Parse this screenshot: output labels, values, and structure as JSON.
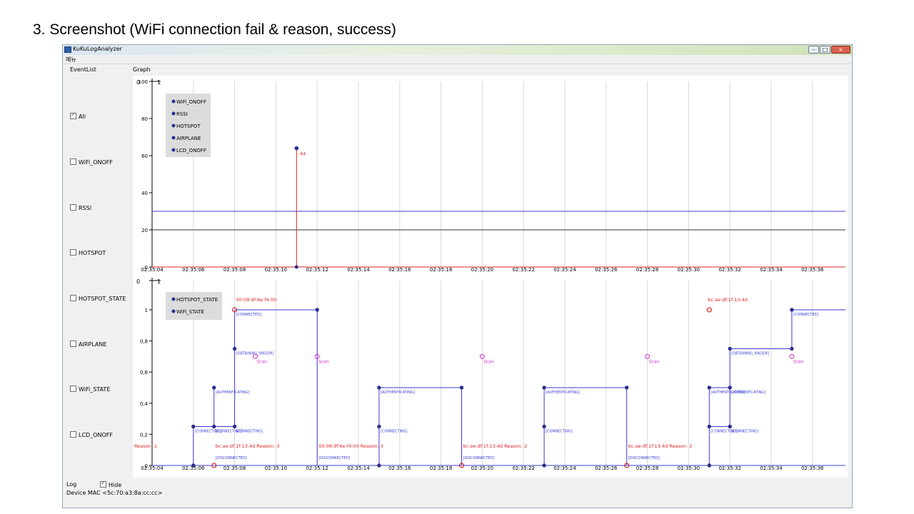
{
  "slide_title": "3. Screenshot (WiFi connection fail & reason, success)",
  "window": {
    "title": "KuKuLogAnalyzer",
    "menu_label": "메뉴",
    "min_label": "–",
    "max_label": "□",
    "close_label": "×"
  },
  "tabs": {
    "eventlist": "EventList",
    "graph": "Graph"
  },
  "sidebar": {
    "items": [
      {
        "label": "All",
        "checked": true
      },
      {
        "label": "WiFi_ONOFF",
        "checked": false
      },
      {
        "label": "RSSI",
        "checked": false
      },
      {
        "label": "HOTSPOT",
        "checked": false
      },
      {
        "label": "HOTSPOT_STATE",
        "checked": false
      },
      {
        "label": "AIRPLANE",
        "checked": false
      },
      {
        "label": "WiFi_STATE",
        "checked": false
      },
      {
        "label": "LCD_ONOFF",
        "checked": false
      }
    ]
  },
  "footer": {
    "log_label": "Log",
    "hide_label": "Hide",
    "hide_checked": true,
    "device_mac": "Device MAC <5c:70:a3:8a:cc:cc>"
  },
  "colors": {
    "blue": "#2e2e8f",
    "line_blue": "#3b3bd6",
    "red": "#e02020",
    "magenta": "#d030d0",
    "grid": "#d8d8d8"
  },
  "top_chart": {
    "x_ticks": [
      "02:35:04",
      "02:35:06",
      "02:35:08",
      "02:35:10",
      "02:35:12",
      "02:35:14",
      "02:35:16",
      "02:35:18",
      "02:35:20",
      "02:35:22",
      "02:35:24",
      "02:35:26",
      "02:35:28",
      "02:35:30",
      "02:35:32",
      "02:35:34",
      "02:35:36"
    ],
    "y_ticks": [
      "0",
      "20",
      "40",
      "60",
      "80",
      "100"
    ],
    "axis_zero": "0",
    "axis_one": "1",
    "legend": [
      "WiFi_ONOFF",
      "RSSI",
      "HOTSPOT",
      "AIRPLANE",
      "LCD_ONOFF"
    ],
    "rssi_label": "-64"
  },
  "bottom_chart": {
    "x_ticks": [
      "02:35:04",
      "02:35:06",
      "02:35:08",
      "02:35:10",
      "02:35:12",
      "02:35:14",
      "02:35:16",
      "02:35:18",
      "02:35:20",
      "02:35:22",
      "02:35:24",
      "02:35:26",
      "02:35:28",
      "02:35:30",
      "02:35:32",
      "02:35:34",
      "02:35:36"
    ],
    "y_ticks": [
      "0",
      "0,2",
      "0,4",
      "0,6",
      "0,8",
      "1"
    ],
    "axis_zero": "0",
    "axis_one": "1",
    "legend": [
      "HOTSPOT_STATE",
      "WiFi_STATE"
    ],
    "state_labels": {
      "connected": "[CONNECTED]",
      "obtaining": "[OBTAINING_IPADDR]",
      "authenticating": "[AUTHENTICATING]",
      "connecting": "[CONNECTING]",
      "disconnected": "[DISCONNECTED]",
      "scan": "Scan"
    },
    "red_labels": {
      "mac_a": "00:08:9f:6e:f4:00",
      "mac_b": "bc:ae:df:1f:13:4d",
      "reason_left": "Reason: 2",
      "reason_1": "bc:ae:df:1f:13:4d Reason: 3",
      "reason_2": "00:08:9f:6e:f4:00 Reason: 3",
      "reason_3": "bc:ae:df:1f:13:4d Reason: 2",
      "reason_4": "bc:ae:df:1f:13:4d Reason: 2"
    }
  },
  "chart_data": [
    {
      "type": "line",
      "x_unit": "time",
      "x_range": [
        "02:35:04",
        "02:35:37"
      ],
      "ylim": [
        0,
        100
      ],
      "legend": [
        "WiFi_ONOFF",
        "RSSI",
        "HOTSPOT",
        "AIRPLANE",
        "LCD_ONOFF"
      ],
      "legend_placement": "top-left",
      "grid": true,
      "events": [
        {
          "series": "RSSI",
          "time": "02:35:11",
          "value": 64,
          "label": "-64"
        }
      ],
      "hlines": [
        {
          "value": 30,
          "color": "#3b3bd6"
        },
        {
          "value": 20,
          "color": "#333333"
        }
      ]
    },
    {
      "type": "line",
      "x_unit": "time",
      "x_range": [
        "02:35:04",
        "02:35:37"
      ],
      "ylim": [
        0,
        1
      ],
      "legend": [
        "HOTSPOT_STATE",
        "WiFi_STATE"
      ],
      "legend_placement": "top-left",
      "grid": true,
      "state_levels": {
        "DISCONNECTED": 0,
        "CONNECTING": 0.25,
        "AUTHENTICATING": 0.5,
        "OBTAINING_IPADDR": 0.75,
        "CONNECTED": 1
      },
      "scan_level": 0.7,
      "events": [
        {
          "time": "02:35:06.0",
          "state": "CONNECTING"
        },
        {
          "time": "02:35:07.0",
          "state": "AUTHENTICATING"
        },
        {
          "time": "02:35:08.0",
          "state": "OBTAINING_IPADDR"
        },
        {
          "time": "02:35:08.0",
          "state": "CONNECTED",
          "mac": "00:08:9f:6e:f4:00"
        },
        {
          "time": "02:35:12.0",
          "state": "DISCONNECTED",
          "reason": "00:08:9f:6e:f4:00 Reason: 3"
        },
        {
          "time": "02:35:15.0",
          "state": "AUTHENTICATING"
        },
        {
          "time": "02:35:19.0",
          "state": "DISCONNECTED",
          "reason": "bc:ae:df:1f:13:4d Reason: 2"
        },
        {
          "time": "02:35:23.0",
          "state": "AUTHENTICATING"
        },
        {
          "time": "02:35:27.0",
          "state": "DISCONNECTED",
          "reason": "bc:ae:df:1f:13:4d Reason: 2"
        },
        {
          "time": "02:35:31.0",
          "state": "AUTHENTICATING"
        },
        {
          "time": "02:35:32.0",
          "state": "OBTAINING_IPADDR"
        },
        {
          "time": "02:35:35.0",
          "state": "CONNECTED",
          "mac": "bc:ae:df:1f:13:4d"
        }
      ],
      "scans": [
        "02:35:09",
        "02:35:12",
        "02:35:20",
        "02:35:28",
        "02:35:35"
      ]
    }
  ]
}
